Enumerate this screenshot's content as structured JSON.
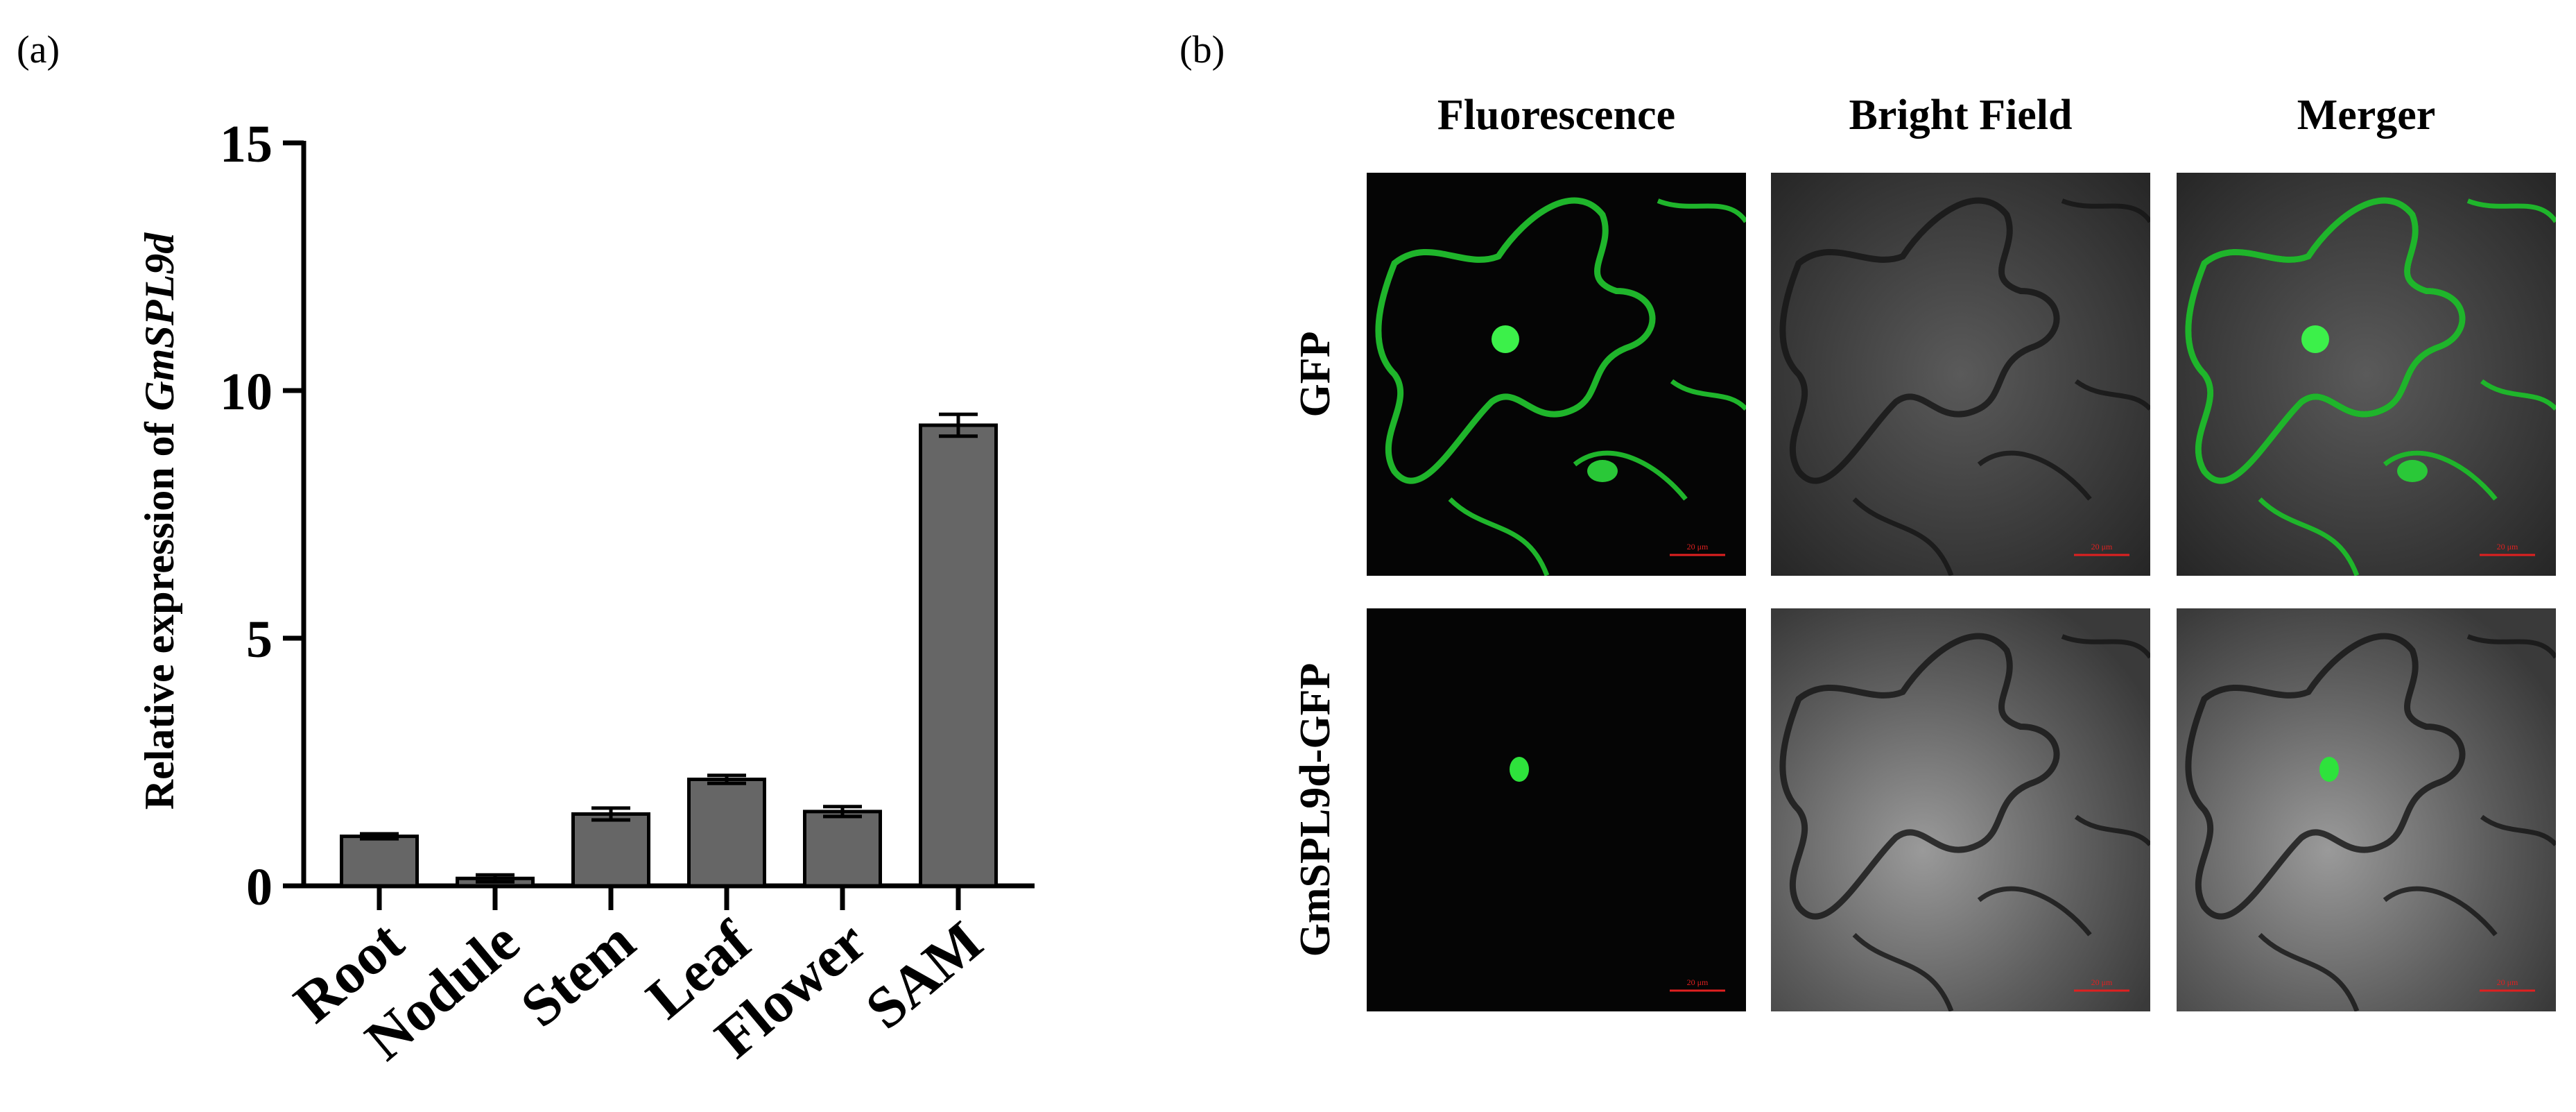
{
  "chart_data": {
    "type": "bar",
    "ylabel": [
      "Relative expression of",
      "GmSPL9d"
    ],
    "categories": [
      "Root",
      "Nodule",
      "Stem",
      "Leaf",
      "Flower",
      "SAM"
    ],
    "values": [
      1.0,
      0.15,
      1.45,
      2.15,
      1.5,
      9.3
    ],
    "errors": [
      0.05,
      0.07,
      0.12,
      0.08,
      0.1,
      0.22
    ],
    "color": "#666666",
    "ylim": [
      0,
      15
    ],
    "yticks": [
      0,
      5,
      10,
      15
    ],
    "grid": false
  },
  "panels": {
    "a": "(a)",
    "b": "(b)"
  },
  "microscopy": {
    "columns": [
      "Fluorescence",
      "Bright Field",
      "Merger"
    ],
    "rows": [
      "GFP",
      "GmSPL9d-GFP"
    ],
    "scale_bar": "20 μm"
  }
}
